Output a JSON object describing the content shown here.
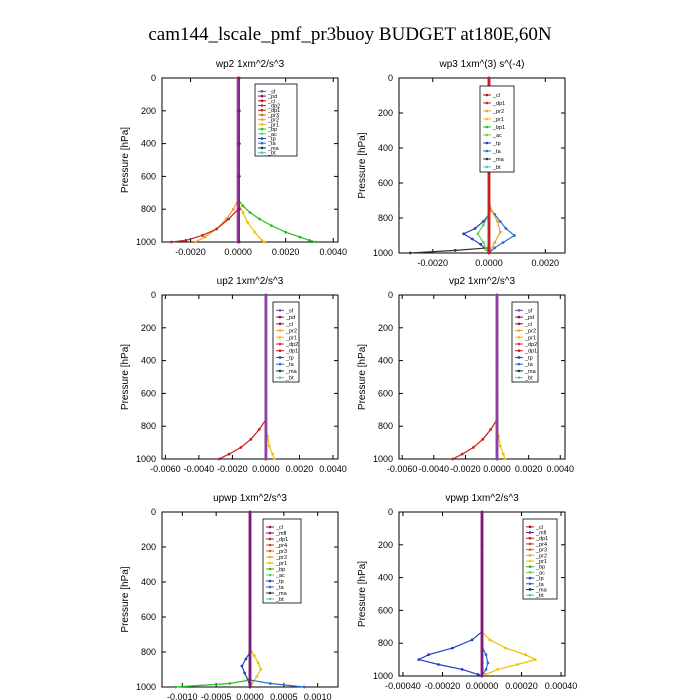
{
  "figure_title": "cam144_lscale_pmf_pr3buoy  BUDGET at180E,60N",
  "colors": {
    "_sf": "#8b3fa8",
    "_pd": "#7a0f6e",
    "_cl": "#b01010",
    "_dp1": "#c81e1e",
    "_dp2": "#d22828",
    "_pr1": "#f0c000",
    "_pr2": "#f0a030",
    "_pr3": "#d06a00",
    "_pr4": "#c03c3c",
    "_mfl": "#7a1a86",
    "_bp": "#22c022",
    "_bp1": "#22c022",
    "_ac": "#60d060",
    "_tp": "#2040c0",
    "_ta": "#2a6ad0",
    "_ma": "#303030",
    "_bt": "#40c8d8"
  },
  "chart_data": [
    {
      "id": "wp2",
      "type": "line",
      "title": "wp2   1xm^2/s^3",
      "ylabel": "Pressure  [hPa]",
      "xlim": [
        -0.0032,
        0.0042
      ],
      "ylim": [
        1000,
        0
      ],
      "xticks": [
        -0.002,
        0.0,
        0.002,
        0.004
      ],
      "xtick_labels": [
        "-0.0020",
        "0.0000",
        "0.0020",
        "0.0040"
      ],
      "yticks": [
        0,
        200,
        400,
        600,
        800,
        1000
      ],
      "ytick_labels": [
        "0",
        "200",
        "400",
        "600",
        "800",
        "1000"
      ],
      "legend": [
        "_sf",
        "_pd",
        "_cl",
        "_dp2",
        "_dp1",
        "_pr3",
        "_pr2",
        "_pr1",
        "_bp",
        "_ac",
        "_tp",
        "_ta",
        "_ma",
        "_bt"
      ],
      "series": [
        {
          "name": "_bp",
          "p": [
            740,
            780,
            820,
            860,
            900,
            940,
            970,
            990,
            1000
          ],
          "v": [
            0.0,
            0.0002,
            0.0005,
            0.0009,
            0.0014,
            0.002,
            0.0026,
            0.003,
            0.0033
          ]
        },
        {
          "name": "_pr2",
          "p": [
            740,
            800,
            860,
            920,
            970,
            1000
          ],
          "v": [
            0.0,
            -0.0002,
            -0.0005,
            -0.0009,
            -0.0014,
            -0.0018
          ]
        },
        {
          "name": "_pr1",
          "p": [
            760,
            820,
            880,
            940,
            990,
            1000
          ],
          "v": [
            0.0,
            0.0002,
            0.0004,
            0.0007,
            0.001,
            0.0011
          ]
        },
        {
          "name": "_dp1",
          "p": [
            800,
            860,
            920,
            960,
            990,
            1000
          ],
          "v": [
            0.0,
            -0.0004,
            -0.0009,
            -0.0015,
            -0.0022,
            -0.0028
          ]
        },
        {
          "name": "_cl",
          "p": [
            0,
            200,
            400,
            600,
            800,
            1000
          ],
          "v": [
            0.0,
            0.0,
            0.0,
            0.0,
            0.0,
            0.0
          ]
        },
        {
          "name": "_sf",
          "p": [
            0,
            200,
            400,
            600,
            800,
            1000
          ],
          "v": [
            0.0,
            0.0,
            0.0,
            0.0,
            0.0,
            0.0
          ]
        },
        {
          "name": "_pd",
          "p": [
            0,
            200,
            400,
            600,
            800,
            1000
          ],
          "v": [
            5e-05,
            5e-05,
            5e-05,
            5e-05,
            5e-05,
            5e-05
          ]
        }
      ]
    },
    {
      "id": "wp3",
      "type": "line",
      "title": "wp3   1xm^(3) s^(-4)",
      "ylabel": "Pressure  [hPa]",
      "xlim": [
        -0.0032,
        0.0027
      ],
      "ylim": [
        1000,
        0
      ],
      "xticks": [
        -0.002,
        0.0,
        0.002
      ],
      "xtick_labels": [
        "-0.0020",
        "0.0000",
        "0.0020"
      ],
      "yticks": [
        0,
        200,
        400,
        600,
        800,
        1000
      ],
      "ytick_labels": [
        "0",
        "200",
        "400",
        "600",
        "800",
        "1000"
      ],
      "legend": [
        "_cl",
        "_dp1",
        "_pr2",
        "_pr1",
        "_bp1",
        "_ac",
        "_tp",
        "_ta",
        "_ma",
        "_bt"
      ],
      "series": [
        {
          "name": "_tp",
          "p": [
            780,
            820,
            860,
            890,
            920,
            950,
            980,
            1000
          ],
          "v": [
            0.0,
            -0.0002,
            -0.0005,
            -0.0009,
            -0.0006,
            -0.0003,
            -0.0001,
            0.0
          ]
        },
        {
          "name": "_ta",
          "p": [
            740,
            780,
            820,
            860,
            900,
            940,
            970,
            1000
          ],
          "v": [
            0.0,
            0.0002,
            0.0004,
            0.0006,
            0.0009,
            0.0005,
            0.0002,
            0.0
          ]
        },
        {
          "name": "_ma",
          "p": [
            970,
            985,
            1000
          ],
          "v": [
            0.0,
            -0.0012,
            -0.0028
          ]
        },
        {
          "name": "_ac",
          "p": [
            780,
            840,
            890,
            940,
            980,
            1000
          ],
          "v": [
            0.0,
            -0.0002,
            -0.0004,
            -0.0002,
            -0.0001,
            0.0
          ]
        },
        {
          "name": "_pr2",
          "p": [
            700,
            760,
            820,
            880,
            940,
            1000
          ],
          "v": [
            0.0,
            0.0001,
            0.0003,
            0.0004,
            0.0002,
            0.0
          ]
        },
        {
          "name": "_cl",
          "p": [
            0,
            200,
            400,
            600,
            800,
            1000
          ],
          "v": [
            0.0,
            0.0,
            0.0,
            0.0,
            0.0,
            0.0
          ]
        },
        {
          "name": "_dp1",
          "p": [
            0,
            200,
            400,
            600,
            800,
            1000
          ],
          "v": [
            0.0,
            0.0,
            0.0,
            0.0,
            0.0,
            0.0
          ]
        }
      ]
    },
    {
      "id": "up2",
      "type": "line",
      "title": "up2   1xm^2/s^3",
      "ylabel": "Pressure  [hPa]",
      "xlim": [
        -0.0062,
        0.0043
      ],
      "ylim": [
        1000,
        0
      ],
      "xticks": [
        -0.006,
        -0.004,
        -0.002,
        0.0,
        0.002,
        0.004
      ],
      "xtick_labels": [
        "-0.0060",
        "-0.0040",
        "-0.0020",
        "0.0000",
        "0.0020",
        "0.0040"
      ],
      "yticks": [
        0,
        200,
        400,
        600,
        800,
        1000
      ],
      "ytick_labels": [
        "0",
        "200",
        "400",
        "600",
        "800",
        "1000"
      ],
      "legend": [
        "_sf",
        "_pd",
        "_cl",
        "_pr2",
        "_pr1",
        "_dp2",
        "_dp1",
        "_tp",
        "_ta",
        "_ma",
        "_bt"
      ],
      "series": [
        {
          "name": "_dp1",
          "p": [
            760,
            820,
            880,
            930,
            970,
            1000
          ],
          "v": [
            0.0,
            -0.0004,
            -0.0009,
            -0.0015,
            -0.0022,
            -0.0028
          ]
        },
        {
          "name": "_pr1",
          "p": [
            800,
            860,
            920,
            970,
            1000
          ],
          "v": [
            0.0,
            0.0001,
            0.0002,
            0.0004,
            0.0005
          ]
        },
        {
          "name": "_cl",
          "p": [
            0,
            200,
            400,
            600,
            800,
            1000
          ],
          "v": [
            0.0,
            0.0,
            0.0,
            0.0,
            0.0,
            0.0
          ]
        },
        {
          "name": "_sf",
          "p": [
            0,
            200,
            400,
            600,
            800,
            1000
          ],
          "v": [
            0.0,
            0.0,
            0.0,
            0.0,
            0.0,
            0.0
          ]
        }
      ]
    },
    {
      "id": "vp2",
      "type": "line",
      "title": "vp2   1xm^2/s^3",
      "ylabel": "Pressure  [hPa]",
      "xlim": [
        -0.0062,
        0.0043
      ],
      "ylim": [
        1000,
        0
      ],
      "xticks": [
        -0.006,
        -0.004,
        -0.002,
        0.0,
        0.002,
        0.004
      ],
      "xtick_labels": [
        "-0.0060",
        "-0.0040",
        "-0.0020",
        "0.0000",
        "0.0020",
        "0.0040"
      ],
      "yticks": [
        0,
        200,
        400,
        600,
        800,
        1000
      ],
      "ytick_labels": [
        "0",
        "200",
        "400",
        "600",
        "800",
        "1000"
      ],
      "legend": [
        "_sf",
        "_pd",
        "_cl",
        "_pr2",
        "_pr1",
        "_dp2",
        "_dp1",
        "_tp",
        "_ta",
        "_ma",
        "_bt"
      ],
      "series": [
        {
          "name": "_dp1",
          "p": [
            760,
            820,
            880,
            930,
            970,
            1000
          ],
          "v": [
            0.0,
            -0.0004,
            -0.0009,
            -0.0015,
            -0.0022,
            -0.0028
          ]
        },
        {
          "name": "_pr1",
          "p": [
            800,
            860,
            920,
            970,
            1000
          ],
          "v": [
            0.0,
            0.0001,
            0.0002,
            0.0004,
            0.0005
          ]
        },
        {
          "name": "_cl",
          "p": [
            0,
            200,
            400,
            600,
            800,
            1000
          ],
          "v": [
            0.0,
            0.0,
            0.0,
            0.0,
            0.0,
            0.0
          ]
        },
        {
          "name": "_sf",
          "p": [
            0,
            200,
            400,
            600,
            800,
            1000
          ],
          "v": [
            0.0,
            0.0,
            0.0,
            0.0,
            0.0,
            0.0
          ]
        }
      ]
    },
    {
      "id": "upwp",
      "type": "line",
      "title": "upwp   1xm^2/s^3",
      "ylabel": "Pressure  [hPa]",
      "xlim": [
        -0.0013,
        0.0013
      ],
      "ylim": [
        1000,
        0
      ],
      "xticks": [
        -0.001,
        -0.0005,
        0.0,
        0.0005,
        0.001
      ],
      "xtick_labels": [
        "-0.0010",
        "-0.0005",
        "0.0000",
        "0.0005",
        "0.0010"
      ],
      "yticks": [
        0,
        200,
        400,
        600,
        800,
        1000
      ],
      "ytick_labels": [
        "0",
        "200",
        "400",
        "600",
        "800",
        "1000"
      ],
      "legend": [
        "_cl",
        "_mfl",
        "_dp1",
        "_pr4",
        "_pr3",
        "_pr2",
        "_pr1",
        "_bp",
        "_ac",
        "_tp",
        "_ta",
        "_ma",
        "_bt"
      ],
      "series": [
        {
          "name": "_pr1",
          "p": [
            780,
            820,
            860,
            900,
            940,
            980,
            1000
          ],
          "v": [
            0.0,
            6e-05,
            0.00012,
            0.00016,
            0.0001,
            3e-05,
            0.0
          ]
        },
        {
          "name": "_tp",
          "p": [
            800,
            840,
            880,
            920,
            960,
            1000
          ],
          "v": [
            0.0,
            -6e-05,
            -0.00012,
            -8e-05,
            -3e-05,
            0.0
          ]
        },
        {
          "name": "_bp",
          "p": [
            960,
            980,
            1000
          ],
          "v": [
            0.0,
            -0.0003,
            -0.0011
          ]
        },
        {
          "name": "_ta",
          "p": [
            960,
            980,
            1000
          ],
          "v": [
            0.0,
            0.0003,
            0.0008
          ]
        },
        {
          "name": "_cl",
          "p": [
            0,
            200,
            400,
            600,
            800,
            1000
          ],
          "v": [
            0.0,
            0.0,
            0.0,
            0.0,
            0.0,
            0.0
          ]
        },
        {
          "name": "_mfl",
          "p": [
            0,
            200,
            400,
            600,
            800,
            1000
          ],
          "v": [
            0.0,
            0.0,
            0.0,
            0.0,
            0.0,
            0.0
          ]
        }
      ]
    },
    {
      "id": "vpwp",
      "type": "line",
      "title": "vpwp   1xm^2/s^3",
      "ylabel": "Pressure  [hPa]",
      "xlim": [
        -0.00042,
        0.00042
      ],
      "ylim": [
        1000,
        0
      ],
      "xticks": [
        -0.0004,
        -0.0002,
        0.0,
        0.0002,
        0.0004
      ],
      "xtick_labels": [
        "-0.00040",
        "-0.00020",
        "0.00000",
        "0.00020",
        "0.00040"
      ],
      "yticks": [
        0,
        200,
        400,
        600,
        800,
        1000
      ],
      "ytick_labels": [
        "0",
        "200",
        "400",
        "600",
        "800",
        "1000"
      ],
      "legend": [
        "_cl",
        "_mfl",
        "_dp1",
        "_pr4",
        "_pr3",
        "_pr2",
        "_pr1",
        "_bp",
        "_ac",
        "_tp",
        "_ta",
        "_ma",
        "_bt"
      ],
      "series": [
        {
          "name": "_tp",
          "p": [
            730,
            780,
            830,
            870,
            900,
            930,
            960,
            990,
            1000
          ],
          "v": [
            0.0,
            -5e-05,
            -0.00015,
            -0.00027,
            -0.00032,
            -0.00022,
            -0.0001,
            -2e-05,
            0.0
          ]
        },
        {
          "name": "_pr1",
          "p": [
            730,
            780,
            830,
            870,
            900,
            930,
            960,
            990,
            1000
          ],
          "v": [
            0.0,
            4e-05,
            0.00012,
            0.00022,
            0.00027,
            0.00018,
            8e-05,
            2e-05,
            0.0
          ]
        },
        {
          "name": "_ta",
          "p": [
            820,
            870,
            920,
            960,
            1000
          ],
          "v": [
            0.0,
            2e-05,
            3e-05,
            2e-05,
            0.0
          ]
        },
        {
          "name": "_cl",
          "p": [
            0,
            200,
            400,
            600,
            800,
            1000
          ],
          "v": [
            0.0,
            0.0,
            0.0,
            0.0,
            0.0,
            0.0
          ]
        },
        {
          "name": "_mfl",
          "p": [
            0,
            200,
            400,
            600,
            800,
            1000
          ],
          "v": [
            0.0,
            0.0,
            0.0,
            0.0,
            0.0,
            0.0
          ]
        }
      ]
    }
  ]
}
